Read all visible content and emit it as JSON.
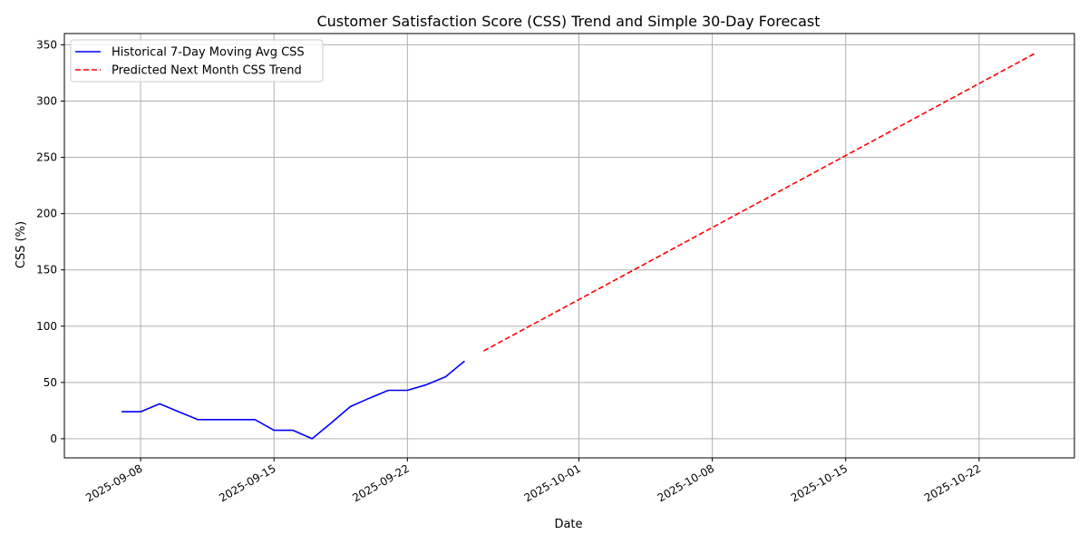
{
  "chart_data": {
    "type": "line",
    "title": "Customer Satisfaction Score (CSS) Trend and Simple 30-Day Forecast",
    "xlabel": "Date",
    "ylabel": "CSS (%)",
    "xlim": [
      "2025-09-04",
      "2025-10-27"
    ],
    "ylim": [
      -17,
      360
    ],
    "grid": true,
    "legend_position": "upper-left",
    "x_ticks": [
      "2025-09-08",
      "2025-09-15",
      "2025-09-22",
      "2025-10-01",
      "2025-10-08",
      "2025-10-15",
      "2025-10-22"
    ],
    "y_ticks": [
      0,
      50,
      100,
      150,
      200,
      250,
      300,
      350
    ],
    "series": [
      {
        "name": "Historical 7-Day Moving Avg CSS",
        "color": "#0000ff",
        "style": "solid",
        "x": [
          "2025-09-07",
          "2025-09-08",
          "2025-09-09",
          "2025-09-10",
          "2025-09-11",
          "2025-09-12",
          "2025-09-13",
          "2025-09-14",
          "2025-09-15",
          "2025-09-16",
          "2025-09-17",
          "2025-09-18",
          "2025-09-19",
          "2025-09-20",
          "2025-09-21",
          "2025-09-22",
          "2025-09-23",
          "2025-09-24",
          "2025-09-25"
        ],
        "y": [
          24,
          24,
          31,
          24,
          17,
          17,
          17,
          17,
          7.5,
          7.5,
          0,
          14,
          28.5,
          36,
          43,
          43,
          48,
          55,
          69
        ]
      },
      {
        "name": "Predicted Next Month CSS Trend",
        "color": "#ff0000",
        "style": "dashed",
        "x": [
          "2025-09-26",
          "2025-10-25"
        ],
        "y": [
          78,
          343
        ]
      }
    ]
  }
}
